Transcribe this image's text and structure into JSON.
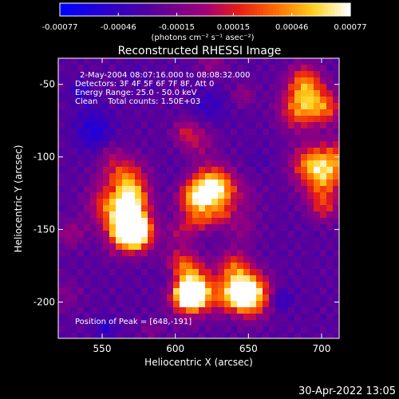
{
  "colorbar": {
    "ticks": [
      "-0.00077",
      "-0.00046",
      "-0.00015",
      "0.00015",
      "0.00046",
      "0.00077"
    ],
    "tick_values": [
      -0.00077,
      -0.00046,
      -0.00015,
      0.00015,
      0.00046,
      0.00077
    ],
    "range": [
      -0.00077,
      0.00077
    ],
    "unit_label": "(photons cm⁻² s⁻¹ asec⁻²)"
  },
  "chart_data": {
    "type": "heatmap",
    "title": "Reconstructed RHESSI Image",
    "xlabel": "Heliocentric X (arcsec)",
    "ylabel": "Heliocentric Y (arcsec)",
    "xlim": [
      520,
      712
    ],
    "ylim": [
      -225,
      -32
    ],
    "xticks": [
      550,
      600,
      650,
      700
    ],
    "yticks": [
      -50,
      -100,
      -150,
      -200
    ],
    "colormap": "rhessi-blue-purple-red-yellow-white",
    "peak": {
      "x": 648,
      "y": -191
    },
    "bright_regions_approx": [
      {
        "x": 570,
        "y": -150,
        "level": "high"
      },
      {
        "x": 565,
        "y": -115,
        "level": "medium"
      },
      {
        "x": 650,
        "y": -195,
        "level": "high"
      },
      {
        "x": 612,
        "y": -190,
        "level": "high"
      },
      {
        "x": 625,
        "y": -120,
        "level": "medium"
      },
      {
        "x": 690,
        "y": -60,
        "level": "medium"
      },
      {
        "x": 700,
        "y": -115,
        "level": "medium"
      }
    ],
    "annotations": [
      "2-May-2004 08:07:16.000 to 08:08:32.000",
      "Detectors: 3F 4F 5F 6F 7F 8F, Att 0",
      "Energy Range: 25.0 - 50.0 keV",
      "Clean    Total counts: 1.50E+03"
    ],
    "peak_text": "Position of Peak = [648,-191]"
  },
  "footer": {
    "timestamp": "30-Apr-2022 13:05"
  },
  "colors": {
    "background": "#000000",
    "text": "#ffffff"
  }
}
